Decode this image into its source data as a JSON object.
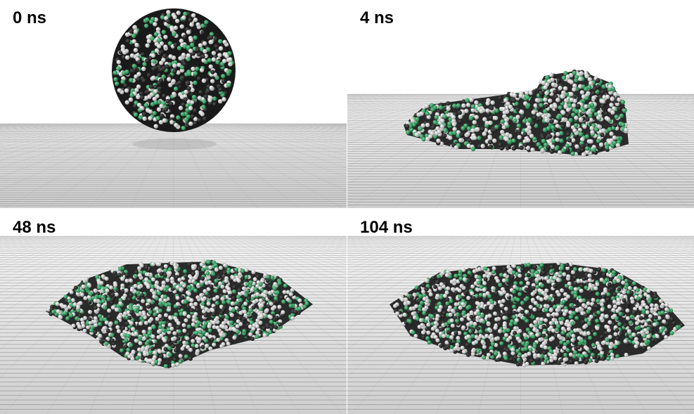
{
  "panels": [
    {
      "label": "0 ns",
      "state": "spherical droplet above surface"
    },
    {
      "label": "4 ns",
      "state": "partially spread cluster"
    },
    {
      "label": "48 ns",
      "state": "flattened monolayer"
    },
    {
      "label": "104 ns",
      "state": "ordered monolayer"
    }
  ],
  "colors": {
    "background": "#ffffff",
    "surface_light": "#e6e6e6",
    "surface_dark": "#7a7a7a",
    "atom_white": "#e8e8e8",
    "atom_dark": "#2a2a2a",
    "atom_green": "#2e9e5a"
  }
}
